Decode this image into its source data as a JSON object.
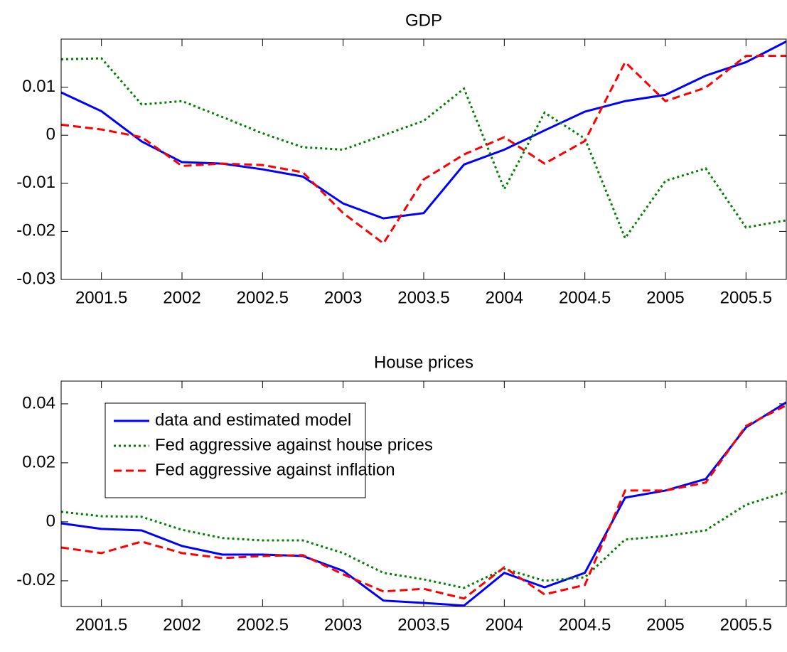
{
  "chart_data": [
    {
      "type": "line",
      "title": "GDP",
      "x": [
        2001.25,
        2001.5,
        2001.75,
        2002,
        2002.25,
        2002.5,
        2002.75,
        2003,
        2003.25,
        2003.5,
        2003.75,
        2004,
        2004.25,
        2004.5,
        2004.75,
        2005,
        2005.25,
        2005.5,
        2005.75
      ],
      "series": [
        {
          "color": "#0000ff",
          "dash": "solid",
          "values": [
            0.0089,
            0.005,
            -0.0013,
            -0.0056,
            -0.0059,
            -0.0071,
            -0.0086,
            -0.0142,
            -0.0173,
            -0.0162,
            -0.0061,
            -0.003,
            0.001,
            0.0049,
            0.0071,
            0.0084,
            0.0124,
            0.0152,
            0.0195
          ]
        },
        {
          "color": "#008000",
          "dash": "dotted",
          "values": [
            0.0158,
            0.016,
            0.0064,
            0.0071,
            0.0038,
            0.0004,
            -0.0025,
            -0.003,
            0,
            0.003,
            0.0097,
            -0.0112,
            0.0047,
            -0.0007,
            -0.0214,
            -0.0095,
            -0.0069,
            -0.0192,
            -0.0177
          ]
        },
        {
          "color": "#ff0000",
          "dash": "dashed",
          "values": [
            0.0022,
            0.0012,
            -0.0004,
            -0.0064,
            -0.0059,
            -0.0062,
            -0.0077,
            -0.0162,
            -0.0225,
            -0.0092,
            -0.004,
            -0.0004,
            -0.0059,
            -0.0012,
            0.0152,
            0.0071,
            0.0099,
            0.0165,
            0.0165
          ]
        }
      ],
      "xlim": [
        2001.25,
        2005.75
      ],
      "xticks": [
        2001.5,
        2002,
        2002.5,
        2003,
        2003.5,
        2004,
        2004.5,
        2005,
        2005.5
      ],
      "ylim": [
        -0.03,
        0.02
      ],
      "yticks": [
        -0.03,
        -0.02,
        -0.01,
        0,
        0.01
      ]
    },
    {
      "type": "line",
      "title": "House prices",
      "x": [
        2001.25,
        2001.5,
        2001.75,
        2002,
        2002.25,
        2002.5,
        2002.75,
        2003,
        2003.25,
        2003.5,
        2003.75,
        2004,
        2004.25,
        2004.5,
        2004.75,
        2005,
        2005.25,
        2005.5,
        2005.75
      ],
      "series": [
        {
          "name": "data and estimated model",
          "color": "#0000ff",
          "dash": "solid",
          "values": [
            -0.0005,
            -0.0024,
            -0.0029,
            -0.0082,
            -0.0111,
            -0.0111,
            -0.0116,
            -0.0166,
            -0.0267,
            -0.0275,
            -0.0284,
            -0.0173,
            -0.0222,
            -0.0173,
            0.0082,
            0.0106,
            0.0145,
            0.032,
            0.0405
          ]
        },
        {
          "name": "Fed aggressive against house prices",
          "color": "#008000",
          "dash": "dotted",
          "values": [
            0.0034,
            0.0019,
            0.0017,
            -0.0027,
            -0.0055,
            -0.0063,
            -0.0063,
            -0.0106,
            -0.0173,
            -0.0195,
            -0.0224,
            -0.0159,
            -0.02,
            -0.0188,
            -0.006,
            -0.0048,
            -0.0029,
            0.0058,
            0.0101
          ]
        },
        {
          "name": "Fed aggressive against inflation",
          "color": "#ff0000",
          "dash": "dashed",
          "values": [
            -0.0087,
            -0.0106,
            -0.0067,
            -0.0106,
            -0.0123,
            -0.0116,
            -0.0113,
            -0.0178,
            -0.0236,
            -0.0227,
            -0.026,
            -0.0154,
            -0.0246,
            -0.0214,
            0.0106,
            0.0106,
            0.0133,
            0.0325,
            0.0395
          ]
        }
      ],
      "xlim": [
        2001.25,
        2005.75
      ],
      "xticks": [
        2001.5,
        2002,
        2002.5,
        2003,
        2003.5,
        2004,
        2004.5,
        2005,
        2005.5
      ],
      "ylim": [
        -0.0287,
        0.0477
      ],
      "yticks": [
        -0.02,
        0,
        0.02,
        0.04
      ],
      "legend": "upper left"
    }
  ]
}
